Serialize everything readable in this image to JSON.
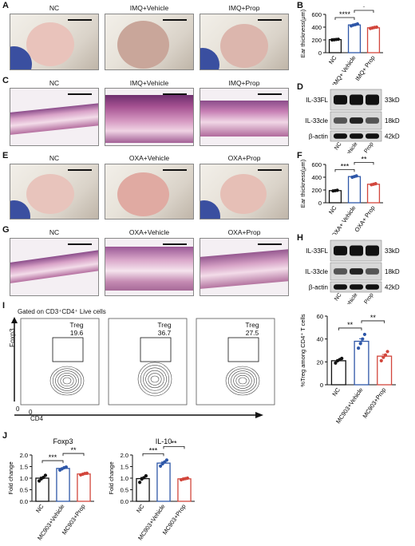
{
  "panels": {
    "A": {
      "label": "A",
      "titles": [
        "NC",
        "IMQ+Vehicle",
        "IMQ+Prop"
      ]
    },
    "B": {
      "label": "B"
    },
    "C": {
      "label": "C",
      "titles": [
        "NC",
        "IMQ+Vehicle",
        "IMQ+Prop"
      ]
    },
    "D": {
      "label": "D"
    },
    "E": {
      "label": "E",
      "titles": [
        "NC",
        "OXA+Vehicle",
        "OXA+Prop"
      ]
    },
    "F": {
      "label": "F"
    },
    "G": {
      "label": "G",
      "titles": [
        "NC",
        "OXA+Vehicle",
        "OXA+Prop"
      ]
    },
    "H": {
      "label": "H"
    },
    "I": {
      "label": "I",
      "gate": "Gated on CD3⁺CD4⁺ Live cells",
      "yaxis": "Foxp3",
      "xaxis": "CD4",
      "zero": "0",
      "flow": [
        {
          "name": "Treg",
          "pct": "19.6"
        },
        {
          "name": "Treg",
          "pct": "36.7"
        },
        {
          "name": "Treg",
          "pct": "27.5"
        }
      ]
    },
    "J": {
      "label": "J"
    }
  },
  "blots": {
    "D": {
      "bands": [
        "IL-33FL",
        "IL-33cle",
        "β-actin"
      ],
      "sizes": [
        "33kD",
        "18kD",
        "42kD"
      ],
      "lanes": [
        "NC",
        "IMQ+ Vehicle",
        "IMQ+ Prop"
      ]
    },
    "H": {
      "bands": [
        "IL-33FL",
        "IL-33cle",
        "β-actin"
      ],
      "sizes": [
        "33kD",
        "18kD",
        "42kD"
      ],
      "lanes": [
        "NC",
        "OXA+ Vehicle",
        "OXA+ Prop"
      ]
    }
  },
  "colors": {
    "nc": "#111111",
    "vehicle": "#2e57a8",
    "prop": "#d2463c"
  },
  "chart_data": [
    {
      "panel": "B",
      "type": "bar",
      "ylabel": "Ear thickness(μm)",
      "ylim": [
        0,
        600
      ],
      "yticks": [
        0,
        200,
        400,
        600
      ],
      "categories": [
        "NC",
        "IMQ+ Vehicle",
        "IMQ+ Prop"
      ],
      "values": [
        205,
        435,
        390
      ],
      "points": [
        [
          200,
          203,
          207,
          210
        ],
        [
          420,
          432,
          440,
          450
        ],
        [
          380,
          388,
          395,
          400
        ]
      ],
      "sig": [
        {
          "from": 0,
          "to": 1,
          "label": "****"
        },
        {
          "from": 1,
          "to": 2,
          "label": "*"
        }
      ]
    },
    {
      "panel": "F",
      "type": "bar",
      "ylabel": "Ear thickness(μm)",
      "ylim": [
        0,
        600
      ],
      "yticks": [
        0,
        200,
        400,
        600
      ],
      "categories": [
        "NC",
        "OXA+ Vehicle",
        "OXA+ Prop"
      ],
      "values": [
        190,
        410,
        290
      ],
      "points": [
        [
          185,
          190,
          195
        ],
        [
          400,
          410,
          420
        ],
        [
          282,
          290,
          298
        ]
      ],
      "sig": [
        {
          "from": 0,
          "to": 1,
          "label": "***"
        },
        {
          "from": 1,
          "to": 2,
          "label": "**"
        }
      ]
    },
    {
      "panel": "I",
      "type": "bar",
      "ylabel": "%Treg among CD4⁺ T cells",
      "ylim": [
        0,
        60
      ],
      "yticks": [
        0,
        20,
        40,
        60
      ],
      "categories": [
        "NC",
        "MC903+Vehicle",
        "MC903+Prop"
      ],
      "values": [
        21,
        38,
        25
      ],
      "points": [
        [
          19,
          21,
          22,
          23
        ],
        [
          32,
          36,
          40,
          44
        ],
        [
          21,
          24,
          26,
          29
        ]
      ],
      "sig": [
        {
          "from": 0,
          "to": 1,
          "label": "**"
        },
        {
          "from": 1,
          "to": 2,
          "label": "**"
        }
      ]
    },
    {
      "panel": "J",
      "type": "bar",
      "title": "Foxp3",
      "ylabel": "Fold change",
      "ylim": [
        0,
        2.0
      ],
      "yticks": [
        0.0,
        0.5,
        1.0,
        1.5,
        2.0
      ],
      "categories": [
        "NC",
        "MC903+Vehicle",
        "MC903+Prop"
      ],
      "values": [
        1.0,
        1.42,
        1.18
      ],
      "points": [
        [
          0.88,
          0.97,
          1.03,
          1.12
        ],
        [
          1.35,
          1.4,
          1.45,
          1.48
        ],
        [
          1.14,
          1.17,
          1.2,
          1.21
        ]
      ],
      "sig": [
        {
          "from": 0,
          "to": 1,
          "label": "***"
        },
        {
          "from": 1,
          "to": 2,
          "label": "**"
        }
      ]
    },
    {
      "panel": "J",
      "type": "bar",
      "title": "IL-10",
      "ylabel": "Fold change",
      "ylim": [
        0,
        2.0
      ],
      "yticks": [
        0.0,
        0.5,
        1.0,
        1.5,
        2.0
      ],
      "categories": [
        "NC",
        "MC903+Vehicle",
        "MC903+Prop"
      ],
      "values": [
        0.98,
        1.65,
        0.97
      ],
      "points": [
        [
          0.82,
          0.96,
          1.02,
          1.1
        ],
        [
          1.52,
          1.62,
          1.7,
          1.78
        ],
        [
          0.93,
          0.96,
          0.98,
          1.0
        ]
      ],
      "sig": [
        {
          "from": 0,
          "to": 1,
          "label": "***"
        },
        {
          "from": 1,
          "to": 2,
          "label": "**"
        }
      ]
    }
  ]
}
